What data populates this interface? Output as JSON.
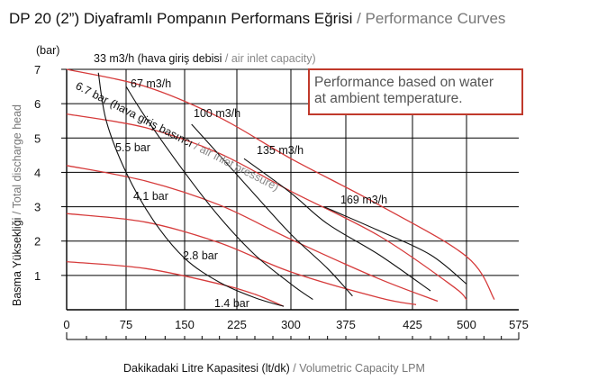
{
  "header": {
    "title_tr": "DP 20 (2”) Diyaframlı Pompanın Performans Eğrisi",
    "title_sep": " / ",
    "title_en": "Performance Curves"
  },
  "note": {
    "line1": "Performance based on water",
    "line2": "at ambient temperature."
  },
  "axis_labels": {
    "y_unit": "(bar)",
    "y_tr": "Basma Yüksekliği",
    "y_sep": " / ",
    "y_en": "Total discharge head",
    "x_tr": "Dakikadaki Litre Kapasitesi (lt/dk)",
    "x_sep": " / ",
    "x_en": "Volumetric Capacity LPM"
  },
  "colors": {
    "pressure_curve": "#d63b3b",
    "air_curve": "#111111",
    "grid": "#000000",
    "note_border": "#c0392b"
  },
  "chart_data": {
    "type": "line",
    "title": "DP 20 (2”) Diyaframlı Pompanın Performans Eğrisi / Performance Curves",
    "xlabel": "Dakikadaki Litre Kapasitesi (lt/dk) / Volumetric Capacity LPM",
    "ylabel": "Basma Yüksekliği / Total discharge head",
    "xlim": [
      0,
      575
    ],
    "ylim": [
      0,
      7
    ],
    "xticks": [
      0,
      75,
      150,
      225,
      300,
      375,
      425,
      500,
      575
    ],
    "yticks": [
      1,
      2,
      3,
      4,
      5,
      6,
      7
    ],
    "grid": true,
    "pressure_curves": [
      {
        "name": "6.7 bar (hava giriş basıncı / air inlet pressure)",
        "x": [
          0,
          100,
          200,
          300,
          400,
          500,
          540
        ],
        "y": [
          7.0,
          6.5,
          5.6,
          4.4,
          3.05,
          1.55,
          0.3
        ]
      },
      {
        "name": "5.5 bar",
        "x": [
          0,
          100,
          200,
          300,
          400,
          480,
          500
        ],
        "y": [
          5.7,
          5.3,
          4.55,
          3.45,
          2.15,
          0.7,
          0.3
        ]
      },
      {
        "name": "4.1 bar",
        "x": [
          0,
          100,
          200,
          300,
          400,
          460
        ],
        "y": [
          4.2,
          3.75,
          3.05,
          2.05,
          0.9,
          0.25
        ]
      },
      {
        "name": "2.8 bar",
        "x": [
          0,
          100,
          200,
          300,
          400,
          430
        ],
        "y": [
          2.8,
          2.55,
          1.95,
          1.1,
          0.35,
          0.15
        ]
      },
      {
        "name": "1.4 bar",
        "x": [
          0,
          100,
          200,
          250,
          290
        ],
        "y": [
          1.4,
          1.2,
          0.75,
          0.45,
          0.1
        ]
      }
    ],
    "air_consumption_curves": [
      {
        "name": "33 m3/h",
        "label": "33 m3/h (hava giriş debisi / air inlet capacity)",
        "x": [
          40,
          50,
          75,
          110,
          150,
          200,
          250,
          290
        ],
        "y": [
          6.9,
          5.5,
          4.0,
          2.6,
          1.5,
          0.8,
          0.35,
          0.1
        ]
      },
      {
        "name": "67 m3/h",
        "label": "67 m3/h",
        "x": [
          75,
          100,
          150,
          200,
          250,
          300,
          330
        ],
        "y": [
          6.5,
          5.6,
          4.0,
          2.7,
          1.6,
          0.75,
          0.3
        ]
      },
      {
        "name": "100 m3/h",
        "label": "100 m3/h",
        "x": [
          160,
          200,
          250,
          300,
          350,
          380
        ],
        "y": [
          5.4,
          4.5,
          3.35,
          2.2,
          1.2,
          0.4
        ]
      },
      {
        "name": "135 m3/h",
        "label": "135 m3/h",
        "x": [
          235,
          300,
          350,
          400,
          450
        ],
        "y": [
          4.4,
          3.4,
          2.5,
          1.6,
          0.55
        ]
      },
      {
        "name": "169 m3/h",
        "label": "169 m3/h",
        "x": [
          345,
          400,
          450,
          500
        ],
        "y": [
          3.0,
          2.3,
          1.6,
          0.75
        ]
      }
    ],
    "labels": {
      "p67_a": "6.7 bar",
      "p67_b": "(hava giriş basıncı",
      "p67_c": " / ",
      "p67_d": "air inlet pressure)",
      "p55": "5.5 bar",
      "p41": "4.1 bar",
      "p28": "2.8 bar",
      "p14": "1.4 bar",
      "a33_a": "33 m3/h (hava giriş debisi",
      "a33_b": " / ",
      "a33_c": "air inlet capacity)",
      "a67": "67 m3/h",
      "a100": "100 m3/h",
      "a135": "135 m3/h",
      "a169": "169 m3/h"
    }
  }
}
